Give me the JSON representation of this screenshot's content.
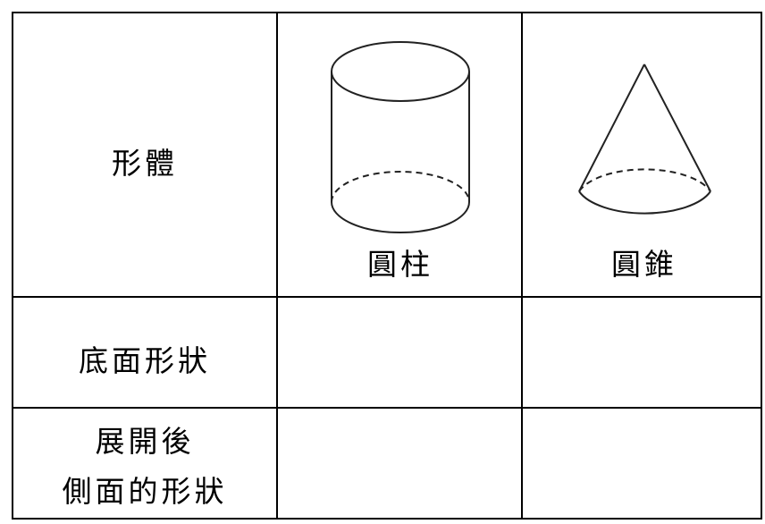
{
  "table": {
    "rows": [
      {
        "header": [
          "形體"
        ],
        "cells": [
          "圓柱",
          "圓錐"
        ]
      },
      {
        "header": [
          "底面形狀"
        ]
      },
      {
        "header": [
          "展開後",
          "側面的形狀"
        ]
      }
    ]
  }
}
